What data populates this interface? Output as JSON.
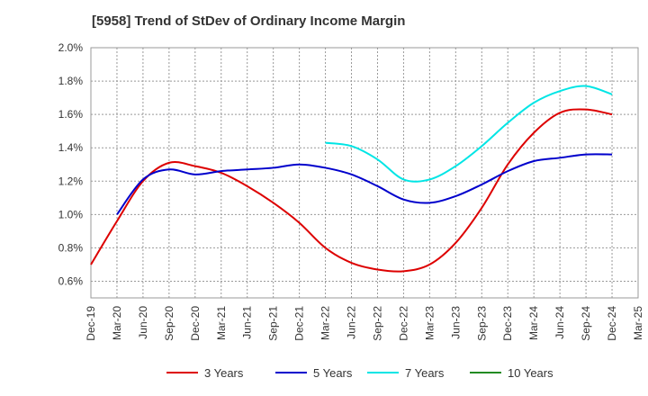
{
  "chart_data": {
    "type": "line",
    "title": "[5958]  Trend of StDev of Ordinary Income Margin",
    "x_ticks": [
      "Dec-19",
      "Mar-20",
      "Jun-20",
      "Sep-20",
      "Dec-20",
      "Mar-21",
      "Jun-21",
      "Sep-21",
      "Dec-21",
      "Mar-22",
      "Jun-22",
      "Sep-22",
      "Dec-22",
      "Mar-23",
      "Jun-23",
      "Sep-23",
      "Dec-23",
      "Mar-24",
      "Jun-24",
      "Sep-24",
      "Dec-24",
      "Mar-25"
    ],
    "y_ticks": [
      "0.6%",
      "0.8%",
      "1.0%",
      "1.2%",
      "1.4%",
      "1.6%",
      "1.8%",
      "2.0%"
    ],
    "ylim": [
      0.5,
      2.0
    ],
    "grid": true,
    "legend_position": "bottom",
    "series": [
      {
        "name": "3 Years",
        "color": "#dd0000",
        "x": [
          "Dec-19",
          "Mar-20",
          "Jun-20",
          "Sep-20",
          "Dec-20",
          "Mar-21",
          "Jun-21",
          "Sep-21",
          "Dec-21",
          "Mar-22",
          "Jun-22",
          "Sep-22",
          "Dec-22",
          "Mar-23",
          "Jun-23",
          "Sep-23",
          "Dec-23",
          "Mar-24",
          "Jun-24",
          "Sep-24",
          "Dec-24"
        ],
        "values": [
          0.7,
          0.96,
          1.2,
          1.31,
          1.29,
          1.25,
          1.17,
          1.07,
          0.95,
          0.8,
          0.71,
          0.67,
          0.66,
          0.7,
          0.83,
          1.04,
          1.3,
          1.49,
          1.61,
          1.63,
          1.6
        ]
      },
      {
        "name": "5 Years",
        "color": "#0000cc",
        "x": [
          "Mar-20",
          "Jun-20",
          "Sep-20",
          "Dec-20",
          "Mar-21",
          "Jun-21",
          "Sep-21",
          "Dec-21",
          "Mar-22",
          "Jun-22",
          "Sep-22",
          "Dec-22",
          "Mar-23",
          "Jun-23",
          "Sep-23",
          "Dec-23",
          "Mar-24",
          "Jun-24",
          "Sep-24",
          "Dec-24"
        ],
        "values": [
          1.0,
          1.21,
          1.27,
          1.24,
          1.26,
          1.27,
          1.28,
          1.3,
          1.28,
          1.24,
          1.17,
          1.09,
          1.07,
          1.11,
          1.18,
          1.26,
          1.32,
          1.34,
          1.36,
          1.36
        ]
      },
      {
        "name": "7 Years",
        "color": "#00e5e5",
        "x": [
          "Mar-22",
          "Jun-22",
          "Sep-22",
          "Dec-22",
          "Mar-23",
          "Jun-23",
          "Sep-23",
          "Dec-23",
          "Mar-24",
          "Jun-24",
          "Sep-24",
          "Dec-24"
        ],
        "values": [
          1.43,
          1.41,
          1.33,
          1.21,
          1.21,
          1.29,
          1.41,
          1.55,
          1.67,
          1.74,
          1.77,
          1.72
        ]
      },
      {
        "name": "10 Years",
        "color": "#228b22",
        "x": [],
        "values": []
      }
    ]
  }
}
